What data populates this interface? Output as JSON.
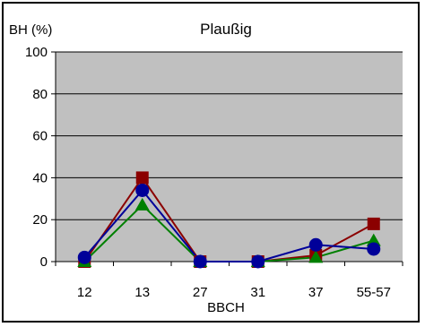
{
  "chart_data": {
    "type": "line",
    "title": "Plaußig",
    "ylabel": "BH (%)",
    "xlabel": "BBCH",
    "categories": [
      "12",
      "13",
      "27",
      "31",
      "37",
      "55-57"
    ],
    "ylim": [
      0,
      100
    ],
    "yticks": [
      0,
      20,
      40,
      60,
      80,
      100
    ],
    "grid": "horizontal",
    "legend": "none",
    "plot_background": "#c0c0c0",
    "series": [
      {
        "color": "#8b0000",
        "marker": "square",
        "values": [
          0,
          40,
          0,
          0,
          3,
          18
        ]
      },
      {
        "color": "#008000",
        "marker": "triangle",
        "values": [
          0,
          27,
          0,
          0,
          2,
          10
        ]
      },
      {
        "color": "#000099",
        "marker": "circle",
        "values": [
          2,
          34,
          0,
          0,
          8,
          6
        ]
      }
    ]
  }
}
